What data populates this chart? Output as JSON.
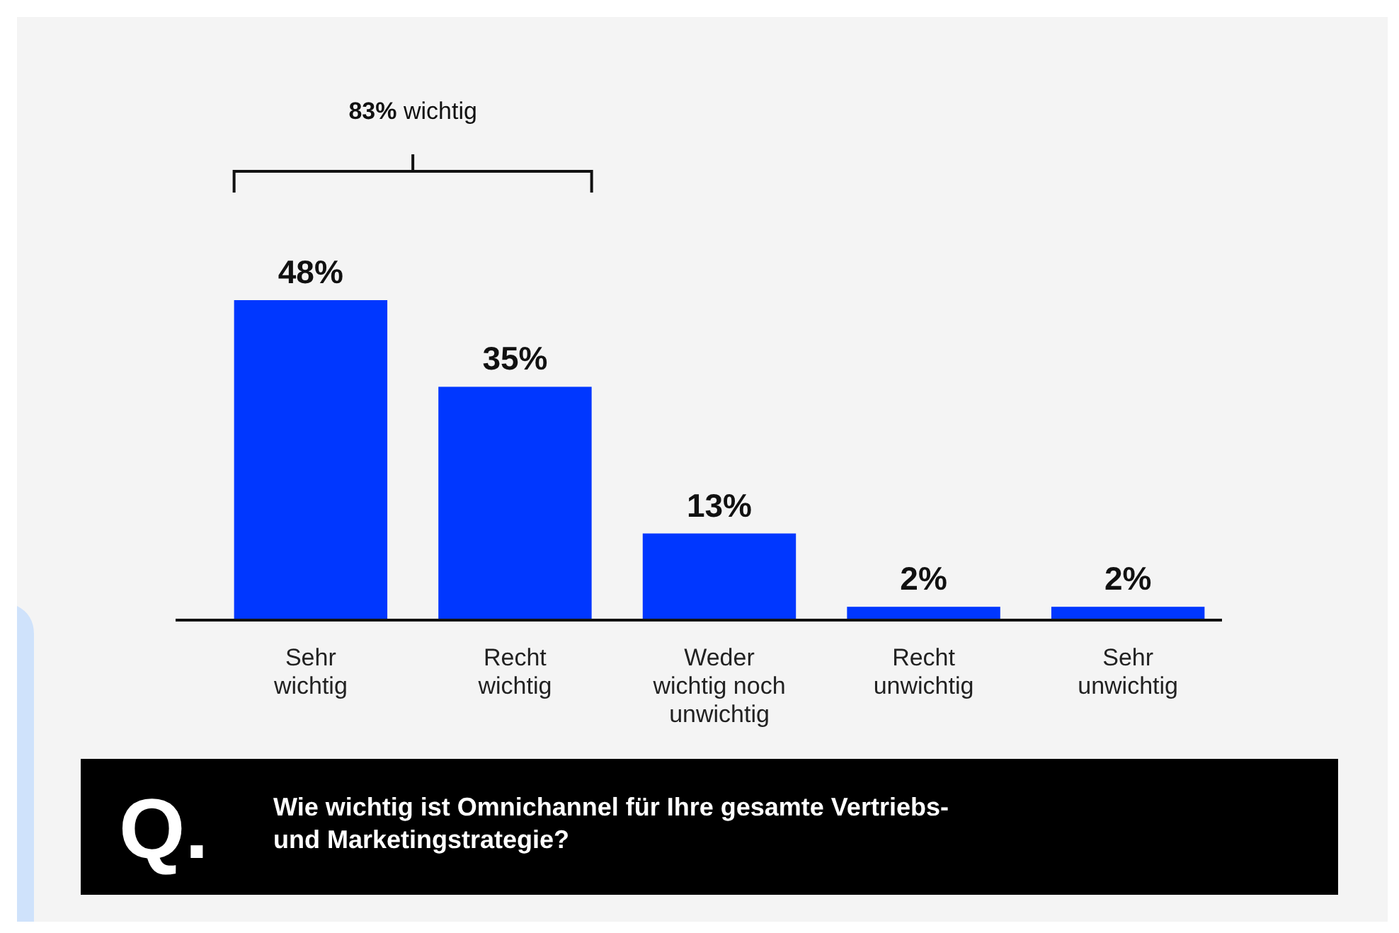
{
  "chart_data": {
    "type": "bar",
    "categories": [
      "Sehr wichtig",
      "Recht wichtig",
      "Weder wichtig noch unwichtig",
      "Recht unwichtig",
      "Sehr unwichtig"
    ],
    "values": [
      48,
      35,
      13,
      2,
      2
    ],
    "value_labels": [
      "48%",
      "35%",
      "13%",
      "2%",
      "2%"
    ],
    "color": "#0037ff",
    "annotations": [
      "83% wichtig",
      "Q.",
      "Wie wichtig ist Omnichannel für Ihre gesamte Vertriebs- und Marketingstrategie?"
    ]
  }
}
